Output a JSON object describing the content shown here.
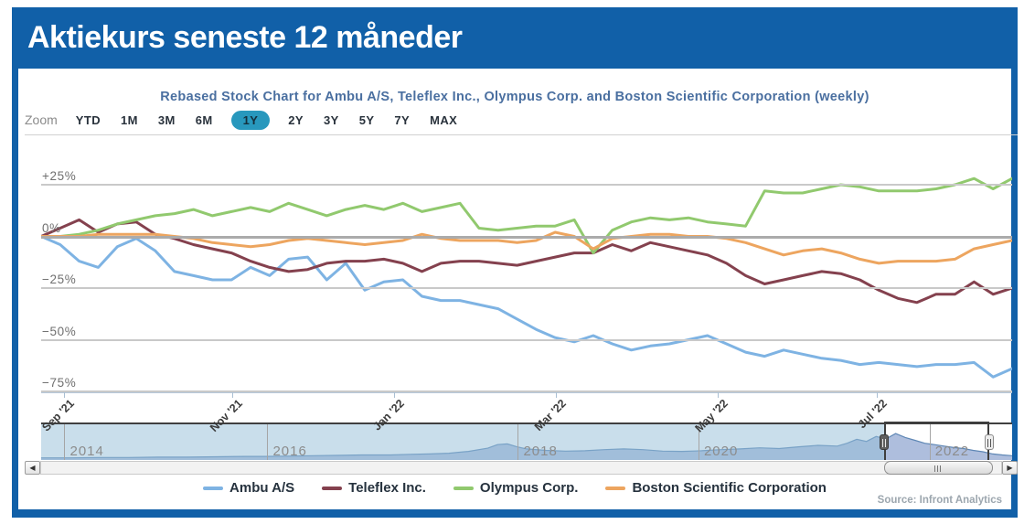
{
  "header": {
    "title": "Aktiekurs seneste 12 måneder"
  },
  "chart": {
    "title": "Rebased Stock Chart for Ambu A/S, Teleflex Inc., Olympus Corp. and Boston Scientific Corporation (weekly)",
    "zoom_label": "Zoom",
    "zoom_buttons": [
      "YTD",
      "1M",
      "3M",
      "6M",
      "1Y",
      "2Y",
      "3Y",
      "5Y",
      "7Y",
      "MAX"
    ],
    "zoom_selected": "1Y",
    "source": "Source: Infront Analytics"
  },
  "chart_data": {
    "type": "line",
    "frequency": "weekly",
    "unit": "percent rebased",
    "ylim": [
      -80,
      33
    ],
    "y_ticks": [
      "+25%",
      "0%",
      "−25%",
      "−50%",
      "−75%"
    ],
    "y_values": [
      25,
      0,
      -25,
      -50,
      -75
    ],
    "x_ticks": [
      "Sep '21",
      "Nov '21",
      "Jan '22",
      "Mar '22",
      "May '22",
      "Jul '22"
    ],
    "x_tick_positions_pct": [
      2.35,
      19.68,
      36.35,
      53.01,
      69.68,
      86.06
    ],
    "series": [
      {
        "name": "Ambu A/S",
        "color": "#7eb3e3",
        "values": [
          0,
          -4,
          -12,
          -15,
          -5,
          -1,
          -7,
          -17,
          -19,
          -21,
          -21,
          -15,
          -19,
          -11,
          -10,
          -21,
          -13,
          -26,
          -22,
          -21,
          -29,
          -31,
          -31,
          -33,
          -35,
          -40,
          -45,
          -49,
          -51,
          -48,
          -52,
          -55,
          -53,
          -52,
          -50,
          -48,
          -52,
          -56,
          -58,
          -55,
          -57,
          -59,
          -60,
          -62,
          -61,
          -62,
          -63,
          -62,
          -62,
          -61,
          -68,
          -64
        ]
      },
      {
        "name": "Teleflex Inc.",
        "color": "#84414e",
        "values": [
          0,
          4,
          8,
          2,
          6,
          7,
          1,
          -1,
          -4,
          -6,
          -8,
          -12,
          -15,
          -17,
          -16,
          -13,
          -12,
          -12,
          -11,
          -13,
          -17,
          -13,
          -12,
          -12,
          -13,
          -14,
          -12,
          -10,
          -8,
          -8,
          -4,
          -7,
          -3,
          -5,
          -7,
          -9,
          -13,
          -19,
          -23,
          -21,
          -19,
          -17,
          -18,
          -21,
          -26,
          -30,
          -32,
          -28,
          -28,
          -22,
          -28,
          -25
        ]
      },
      {
        "name": "Olympus Corp.",
        "color": "#91c96e",
        "values": [
          0,
          0,
          1,
          3,
          6,
          8,
          10,
          11,
          13,
          10,
          12,
          14,
          12,
          16,
          13,
          10,
          13,
          15,
          13,
          16,
          12,
          14,
          16,
          4,
          3,
          4,
          5,
          5,
          8,
          -8,
          3,
          7,
          9,
          8,
          9,
          7,
          6,
          5,
          22,
          21,
          21,
          23,
          25,
          24,
          22,
          22,
          22,
          23,
          25,
          28,
          23,
          28
        ]
      },
      {
        "name": "Boston Scientific Corporation",
        "color": "#eda55f",
        "values": [
          0,
          0,
          0,
          1,
          1,
          1,
          1,
          0,
          -1,
          -3,
          -4,
          -5,
          -4,
          -2,
          -1,
          -2,
          -3,
          -4,
          -3,
          -2,
          1,
          -1,
          -2,
          -2,
          -2,
          -3,
          -2,
          2,
          0,
          -6,
          -1,
          0,
          1,
          1,
          0,
          0,
          -1,
          -3,
          -6,
          -9,
          -7,
          -6,
          -8,
          -11,
          -13,
          -12,
          -12,
          -12,
          -11,
          -6,
          -4,
          -2
        ]
      }
    ]
  },
  "navigator": {
    "years": [
      "2014",
      "2016",
      "2018",
      "2020",
      "2022"
    ],
    "year_positions_pct": [
      2.4,
      23.3,
      49.1,
      67.7,
      91.5
    ],
    "selection": {
      "start_pct": 86.8,
      "end_pct": 97.6
    },
    "area_color": "#aebedd",
    "line_color": "#5f87b5",
    "area_points": [
      [
        0,
        6
      ],
      [
        3,
        6
      ],
      [
        6,
        7
      ],
      [
        9,
        7
      ],
      [
        12,
        8
      ],
      [
        15,
        8
      ],
      [
        18,
        9
      ],
      [
        21,
        10
      ],
      [
        23,
        10
      ],
      [
        26,
        11
      ],
      [
        28,
        12
      ],
      [
        31,
        13
      ],
      [
        33,
        14
      ],
      [
        36,
        14
      ],
      [
        38,
        16
      ],
      [
        40,
        17
      ],
      [
        42,
        19
      ],
      [
        44,
        24
      ],
      [
        46,
        33
      ],
      [
        47,
        43
      ],
      [
        48,
        45
      ],
      [
        49,
        37
      ],
      [
        50,
        31
      ],
      [
        52,
        27
      ],
      [
        54,
        25
      ],
      [
        56,
        26
      ],
      [
        58,
        29
      ],
      [
        60,
        31
      ],
      [
        62,
        29
      ],
      [
        64,
        25
      ],
      [
        66,
        24
      ],
      [
        68,
        26
      ],
      [
        70,
        29
      ],
      [
        72,
        31
      ],
      [
        74,
        34
      ],
      [
        76,
        32
      ],
      [
        78,
        37
      ],
      [
        80,
        41
      ],
      [
        82,
        39
      ],
      [
        83,
        47
      ],
      [
        84,
        58
      ],
      [
        85,
        52
      ],
      [
        86,
        66
      ],
      [
        87,
        59
      ],
      [
        88,
        74
      ],
      [
        89,
        63
      ],
      [
        90,
        55
      ],
      [
        91,
        47
      ],
      [
        92,
        43
      ],
      [
        93,
        39
      ],
      [
        94,
        35
      ],
      [
        95,
        32
      ],
      [
        96,
        27
      ],
      [
        97,
        23
      ],
      [
        98,
        17
      ],
      [
        99,
        14
      ],
      [
        100,
        12
      ]
    ]
  },
  "legend": {
    "items": [
      {
        "label": "Ambu A/S",
        "color": "#7eb3e3"
      },
      {
        "label": "Teleflex Inc.",
        "color": "#84414e"
      },
      {
        "label": "Olympus Corp.",
        "color": "#91c96e"
      },
      {
        "label": "Boston Scientific Corporation",
        "color": "#eda55f"
      }
    ]
  },
  "colors": {
    "brand_blue": "#1160a8",
    "zoom_selected_bg": "#2898bd"
  }
}
